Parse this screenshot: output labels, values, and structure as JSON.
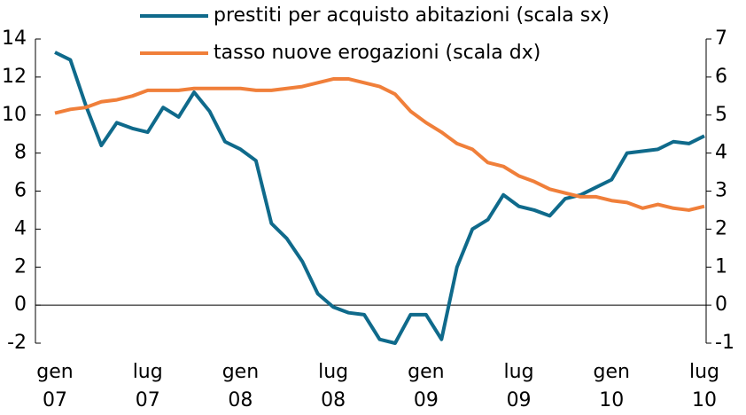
{
  "chart_data": {
    "type": "line",
    "categories": [
      "gen\n07",
      null,
      null,
      null,
      null,
      null,
      "lug\n07",
      null,
      null,
      null,
      null,
      null,
      "gen\n08",
      null,
      null,
      null,
      null,
      null,
      "lug\n08",
      null,
      null,
      null,
      null,
      null,
      "gen\n09",
      null,
      null,
      null,
      null,
      null,
      "lug\n09",
      null,
      null,
      null,
      null,
      null,
      "gen\n10",
      null,
      null,
      null,
      null,
      null,
      "lug\n10"
    ],
    "series": [
      {
        "name": "prestiti per acquisto abitazioni (scala sx)",
        "color": "#0f6a8b",
        "values": [
          13.3,
          12.9,
          10.5,
          8.4,
          9.6,
          9.3,
          9.1,
          10.4,
          9.9,
          11.2,
          10.2,
          8.6,
          8.2,
          7.6,
          4.3,
          3.5,
          2.3,
          0.6,
          -0.1,
          -0.4,
          -0.5,
          -1.8,
          -2.0,
          -0.5,
          -0.5,
          -1.8,
          2.0,
          4.0,
          4.5,
          5.8,
          5.2,
          5.0,
          4.7,
          5.6,
          5.8,
          6.2,
          6.6,
          8.0,
          8.1,
          8.2,
          8.6,
          8.5,
          8.9
        ]
      },
      {
        "name": "tasso nuove erogazioni (scala dx)",
        "color": "#f07f3a",
        "axis": "y2",
        "values": [
          5.05,
          5.15,
          5.2,
          5.35,
          5.4,
          5.5,
          5.65,
          5.65,
          5.65,
          5.7,
          5.7,
          5.7,
          5.7,
          5.65,
          5.65,
          5.7,
          5.75,
          5.85,
          5.95,
          5.95,
          5.85,
          5.75,
          5.55,
          5.1,
          4.8,
          4.55,
          4.25,
          4.1,
          3.75,
          3.65,
          3.4,
          3.25,
          3.05,
          2.95,
          2.85,
          2.85,
          2.75,
          2.7,
          2.55,
          2.65,
          2.55,
          2.5,
          2.6
        ]
      }
    ],
    "ylim": [
      -2,
      14
    ],
    "yticks": [
      -2,
      0,
      2,
      4,
      6,
      8,
      10,
      12,
      14
    ],
    "y2lim": [
      -1,
      7
    ],
    "y2ticks": [
      -1,
      0,
      1,
      2,
      3,
      4,
      5,
      6,
      7
    ],
    "legend": "top"
  }
}
